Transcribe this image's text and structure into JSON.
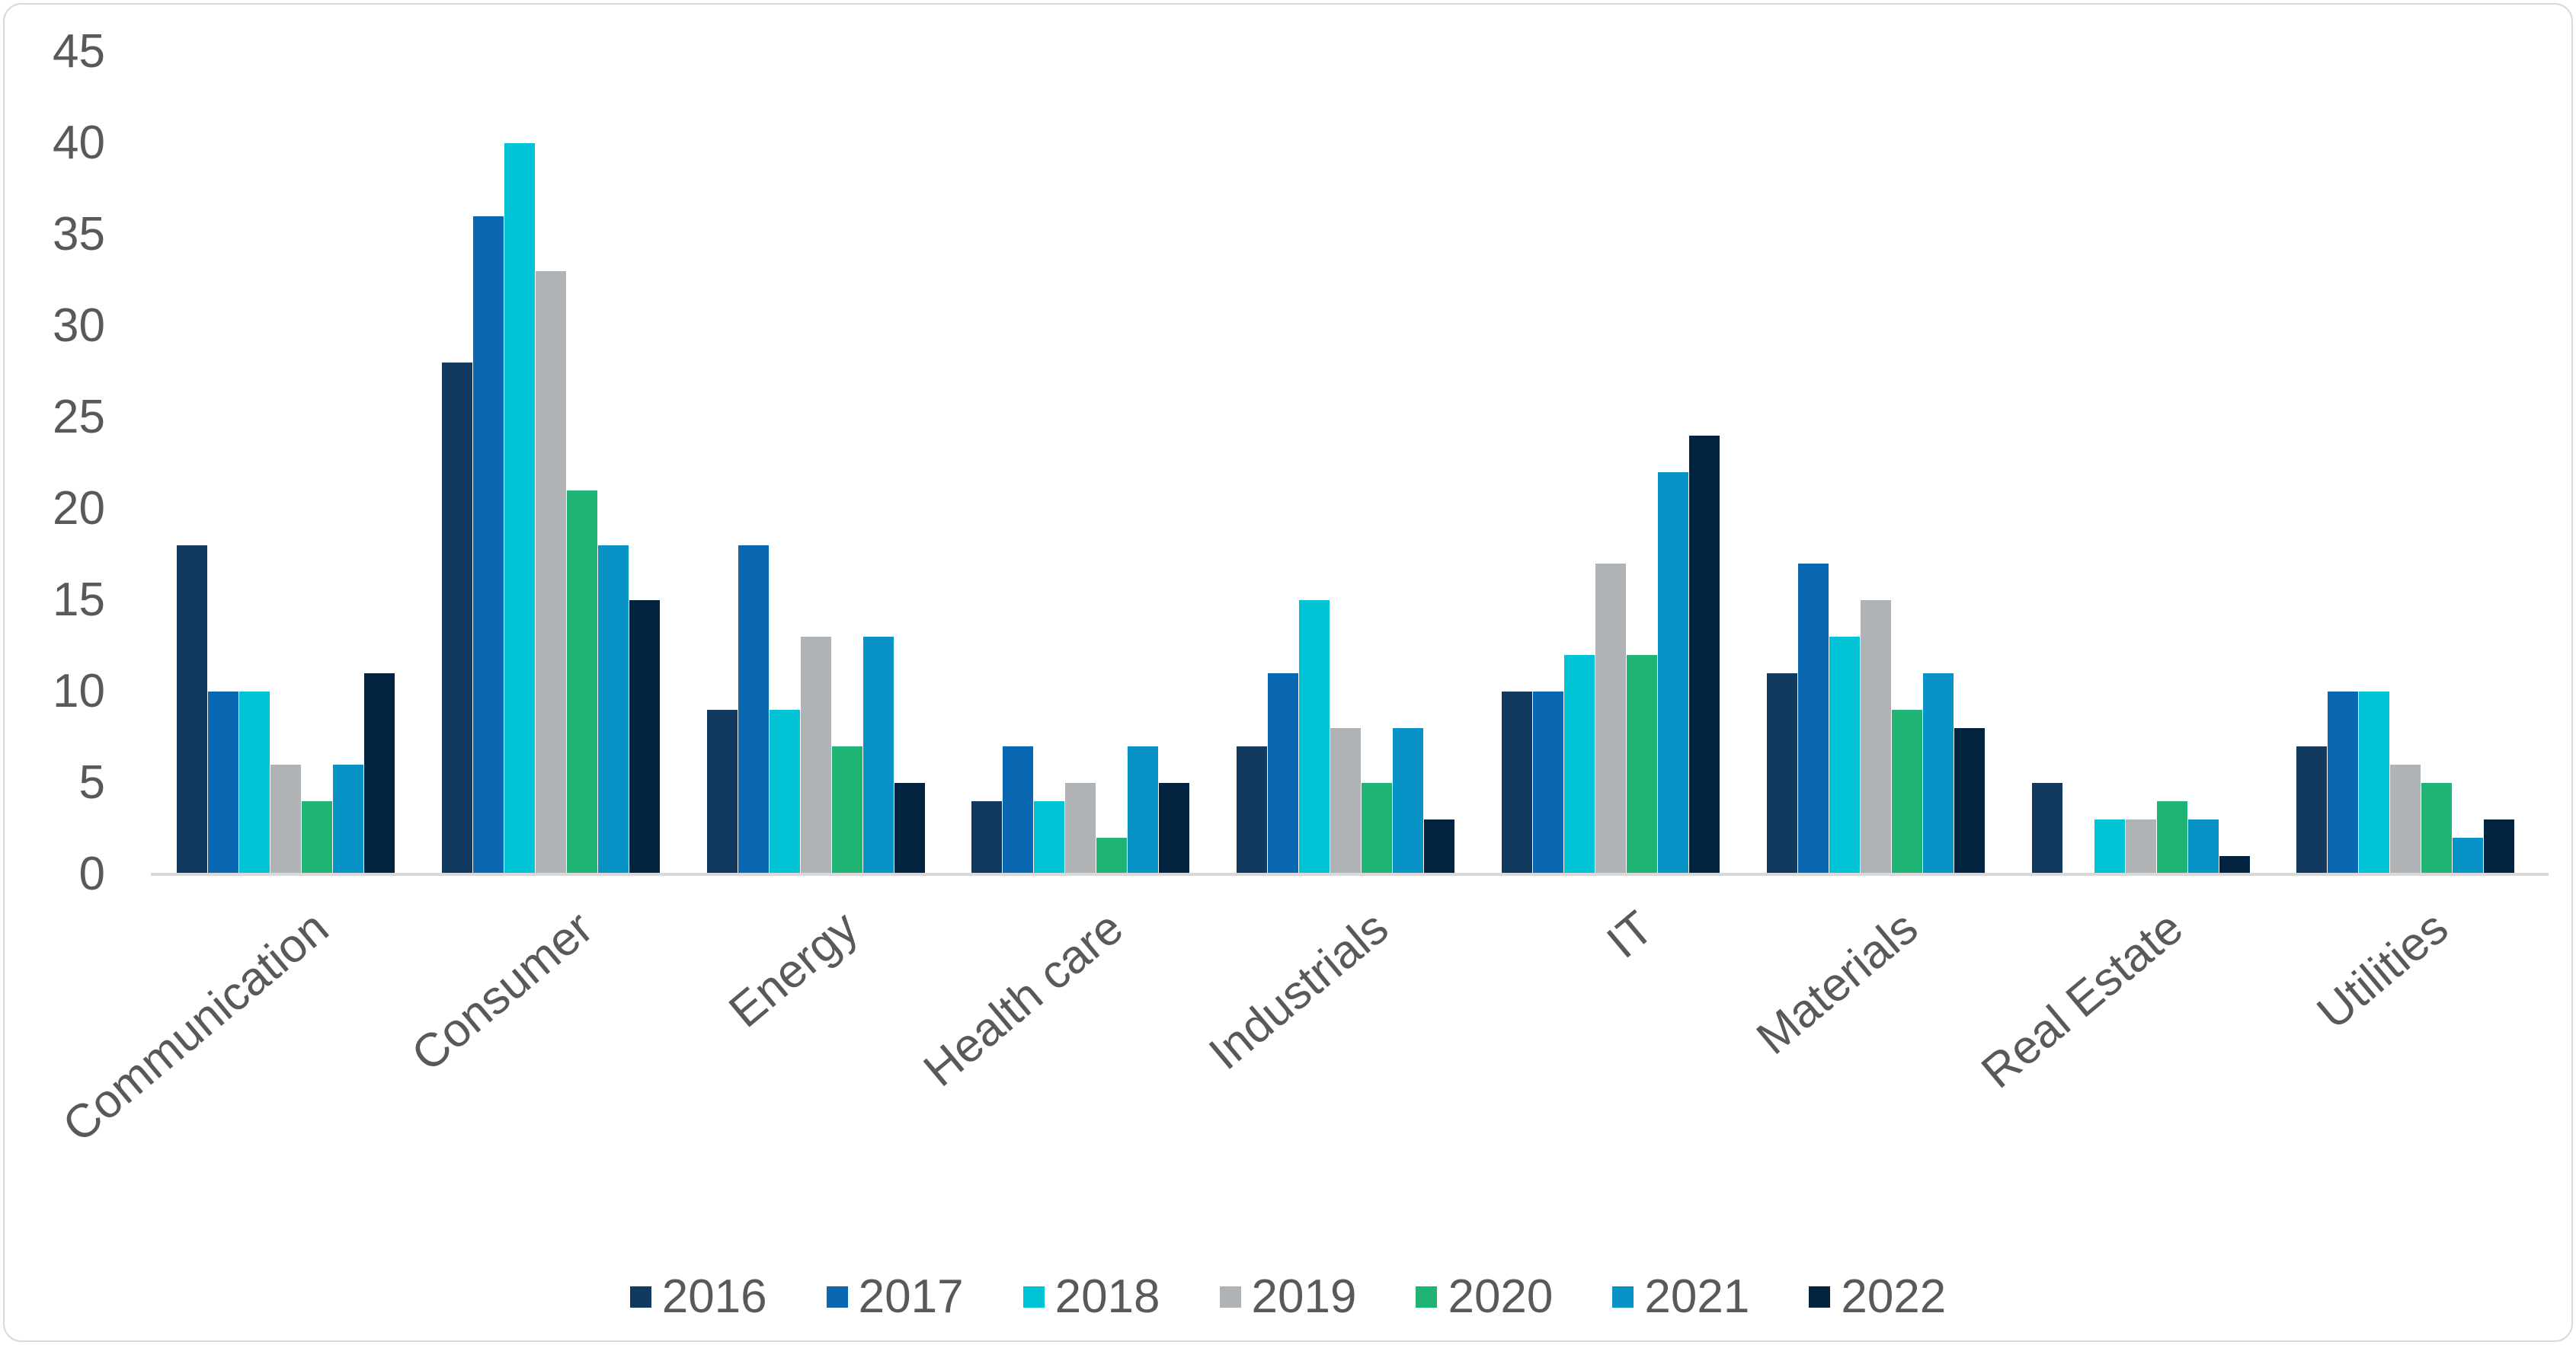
{
  "chart_data": {
    "type": "bar",
    "title": "",
    "categories": [
      "Communication",
      "Consumer",
      "Energy",
      "Health care",
      "Industrials",
      "IT",
      "Materials",
      "Real Estate",
      "Utilities"
    ],
    "series": [
      {
        "name": "2016",
        "color": "#12395E",
        "values": [
          18,
          28,
          9,
          4,
          7,
          10,
          11,
          5,
          7
        ]
      },
      {
        "name": "2017",
        "color": "#0A67B2",
        "values": [
          10,
          36,
          18,
          7,
          11,
          10,
          17,
          0,
          10
        ]
      },
      {
        "name": "2018",
        "color": "#00C4D5",
        "values": [
          10,
          40,
          9,
          4,
          15,
          12,
          13,
          3,
          10
        ]
      },
      {
        "name": "2019",
        "color": "#B0B3B5",
        "values": [
          6,
          33,
          13,
          5,
          8,
          17,
          15,
          3,
          6
        ]
      },
      {
        "name": "2020",
        "color": "#20B475",
        "values": [
          4,
          21,
          7,
          2,
          5,
          12,
          9,
          4,
          5
        ]
      },
      {
        "name": "2021",
        "color": "#0793C6",
        "values": [
          6,
          18,
          13,
          7,
          8,
          22,
          11,
          3,
          2
        ]
      },
      {
        "name": "2022",
        "color": "#032440",
        "values": [
          11,
          15,
          5,
          5,
          3,
          24,
          8,
          1,
          3
        ]
      }
    ],
    "ylim": [
      0,
      45
    ],
    "yticks": [
      0,
      5,
      10,
      15,
      20,
      25,
      30,
      35,
      40,
      45
    ],
    "grid": false,
    "legend_position": "bottom",
    "axis_text_color": "#595959",
    "axis_line_color": "#D9D9D9"
  }
}
